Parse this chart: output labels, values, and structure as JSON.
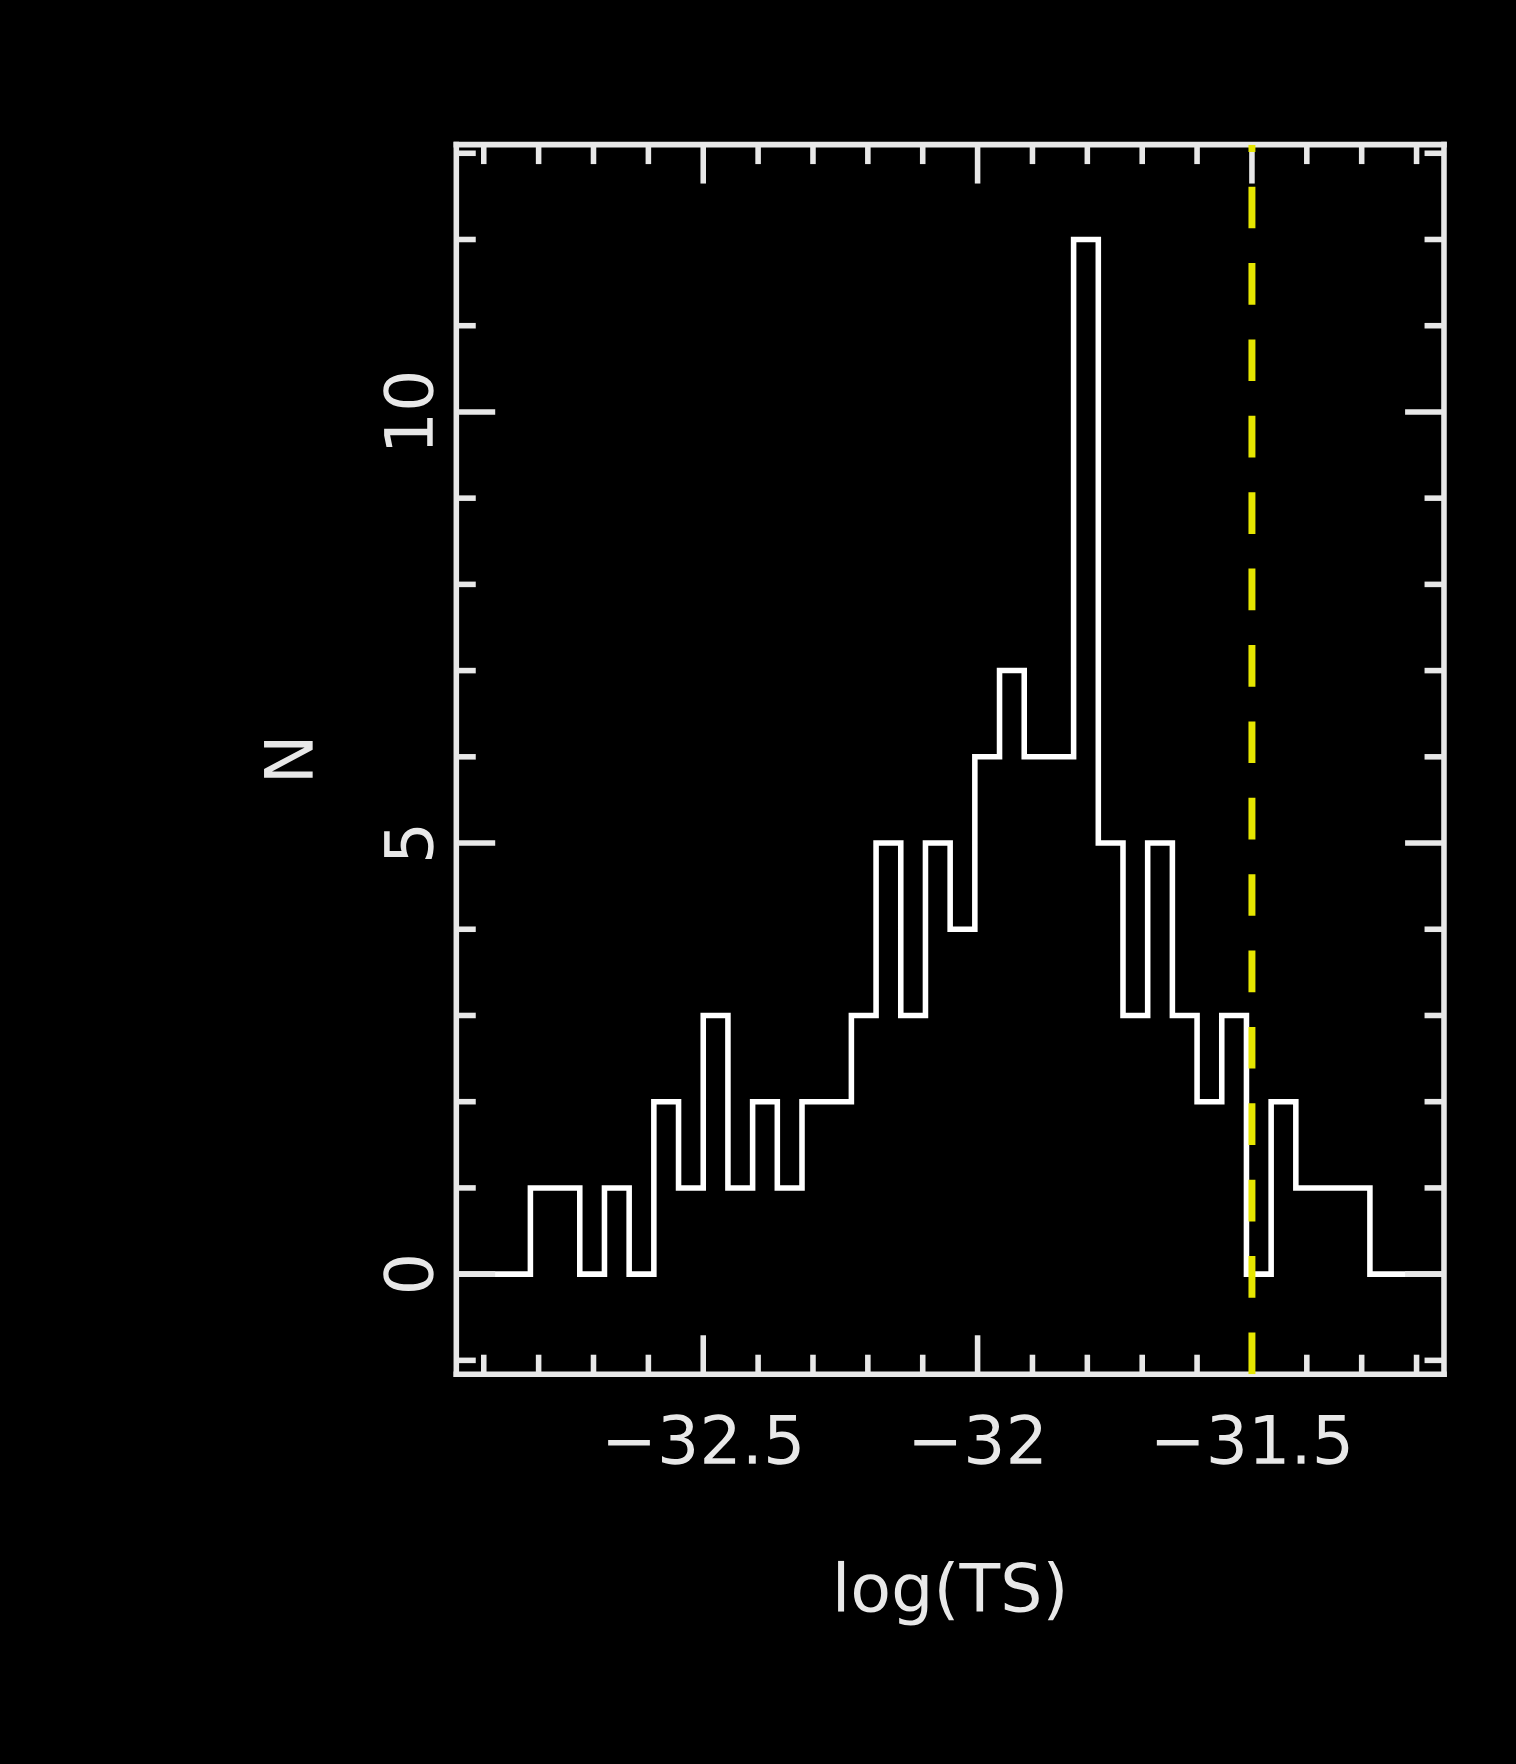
{
  "chart_data": {
    "type": "histogram",
    "xlabel": "log(TS)",
    "ylabel": "N",
    "bins": [
      -32.95,
      -32.905,
      -32.86,
      -32.815,
      -32.77,
      -32.725,
      -32.68,
      -32.635,
      -32.59,
      -32.545,
      -32.5,
      -32.455,
      -32.41,
      -32.365,
      -32.32,
      -32.275,
      -32.23,
      -32.185,
      -32.14,
      -32.095,
      -32.05,
      -32.005,
      -31.96,
      -31.915,
      -31.87,
      -31.825,
      -31.78,
      -31.735,
      -31.69,
      -31.645,
      -31.6,
      -31.555,
      -31.51,
      -31.465,
      -31.42,
      -31.375,
      -31.33,
      -31.285,
      -31.24,
      -31.195,
      -31.15
    ],
    "values": [
      0,
      0,
      0,
      1,
      1,
      0,
      1,
      0,
      2,
      1,
      3,
      1,
      2,
      1,
      2,
      2,
      3,
      5,
      3,
      5,
      4,
      6,
      7,
      6,
      6,
      12,
      5,
      3,
      5,
      3,
      2,
      3,
      0,
      2,
      1,
      1,
      1,
      0,
      0,
      0
    ],
    "color": "#ffffff",
    "xlim": [
      -32.95,
      -31.15
    ],
    "ylim": [
      -1.16,
      13.1
    ],
    "xticks": [
      {
        "value": -32.5,
        "label": "−32.5"
      },
      {
        "value": -32,
        "label": "−32"
      },
      {
        "value": -31.5,
        "label": "−31.5"
      }
    ],
    "yticks": [
      0,
      5,
      10
    ],
    "ref_lines": [
      {
        "axis": "x",
        "value": -31.5,
        "color": "#e6e600",
        "line_style": "dashed"
      }
    ],
    "grid": false,
    "legend": false
  }
}
